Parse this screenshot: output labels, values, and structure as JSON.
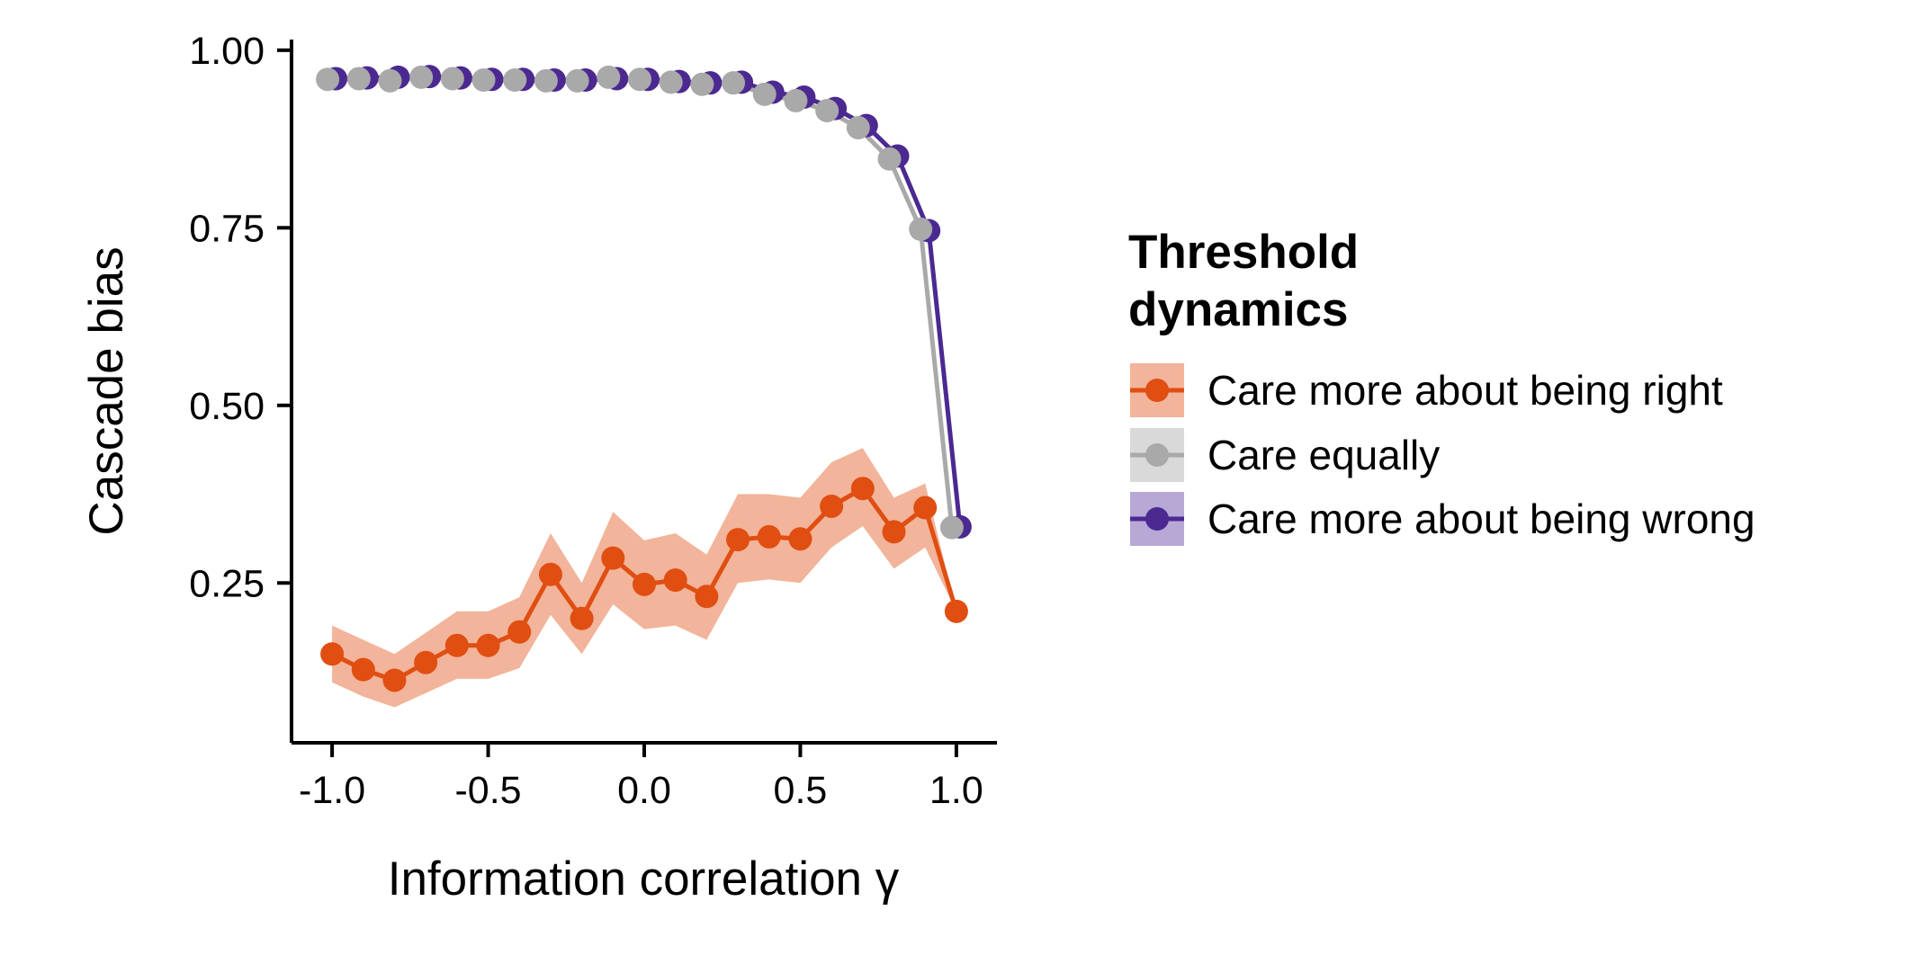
{
  "chart_data": {
    "type": "line",
    "xlabel": "Information correlation γ",
    "ylabel": "Cascade bias",
    "xlim": [
      -1.13,
      1.13
    ],
    "ylim": [
      0.025,
      1.015
    ],
    "x_ticks": [
      "-1.0",
      "-0.5",
      "0.0",
      "0.5",
      "1.0"
    ],
    "x_tick_values": [
      -1.0,
      -0.5,
      0.0,
      0.5,
      1.0
    ],
    "y_ticks": [
      "0.25",
      "0.50",
      "0.75",
      "1.00"
    ],
    "y_tick_values": [
      0.25,
      0.5,
      0.75,
      1.0
    ],
    "grid": false,
    "legend_title": [
      "Threshold",
      "dynamics"
    ],
    "legend_position": "right",
    "series": [
      {
        "name": "Care more about being right",
        "color": "#e04e12",
        "band_color": "#f2b49a",
        "x": [
          -1.0,
          -0.9,
          -0.8,
          -0.7,
          -0.6,
          -0.5,
          -0.4,
          -0.3,
          -0.2,
          -0.1,
          0.0,
          0.1,
          0.2,
          0.3,
          0.4,
          0.5,
          0.6,
          0.7,
          0.8,
          0.9,
          1.0
        ],
        "values": [
          0.15,
          0.128,
          0.113,
          0.138,
          0.162,
          0.162,
          0.181,
          0.262,
          0.2,
          0.285,
          0.248,
          0.254,
          0.231,
          0.311,
          0.315,
          0.312,
          0.358,
          0.383,
          0.322,
          0.356,
          0.21
        ],
        "band_upper": [
          0.19,
          0.17,
          0.15,
          0.18,
          0.21,
          0.21,
          0.23,
          0.32,
          0.25,
          0.35,
          0.31,
          0.32,
          0.29,
          0.375,
          0.375,
          0.37,
          0.42,
          0.44,
          0.37,
          0.39,
          0.21
        ],
        "band_lower": [
          0.11,
          0.09,
          0.075,
          0.095,
          0.115,
          0.115,
          0.13,
          0.205,
          0.15,
          0.22,
          0.185,
          0.19,
          0.17,
          0.25,
          0.255,
          0.25,
          0.3,
          0.33,
          0.27,
          0.3,
          0.21
        ]
      },
      {
        "name": "Care equally",
        "color": "#a9a9a9",
        "band_color": "#d9d9d9",
        "x": [
          -1.0,
          -0.9,
          -0.8,
          -0.7,
          -0.6,
          -0.5,
          -0.4,
          -0.3,
          -0.2,
          -0.1,
          0.0,
          0.1,
          0.2,
          0.3,
          0.4,
          0.5,
          0.6,
          0.7,
          0.8,
          0.9,
          1.0
        ],
        "values": [
          0.959,
          0.96,
          0.957,
          0.962,
          0.96,
          0.958,
          0.958,
          0.957,
          0.957,
          0.962,
          0.959,
          0.955,
          0.952,
          0.954,
          0.938,
          0.929,
          0.915,
          0.891,
          0.847,
          0.748,
          0.328
        ]
      },
      {
        "name": "Care more about being wrong",
        "color": "#4b2991",
        "band_color": "#b7a8d6",
        "x": [
          -1.0,
          -0.9,
          -0.8,
          -0.7,
          -0.6,
          -0.5,
          -0.4,
          -0.3,
          -0.2,
          -0.1,
          0.0,
          0.1,
          0.2,
          0.3,
          0.4,
          0.5,
          0.6,
          0.7,
          0.8,
          0.9,
          1.0
        ],
        "values": [
          0.96,
          0.961,
          0.962,
          0.963,
          0.961,
          0.959,
          0.959,
          0.958,
          0.958,
          0.96,
          0.959,
          0.956,
          0.954,
          0.955,
          0.941,
          0.934,
          0.918,
          0.894,
          0.851,
          0.746,
          0.329
        ]
      }
    ]
  }
}
